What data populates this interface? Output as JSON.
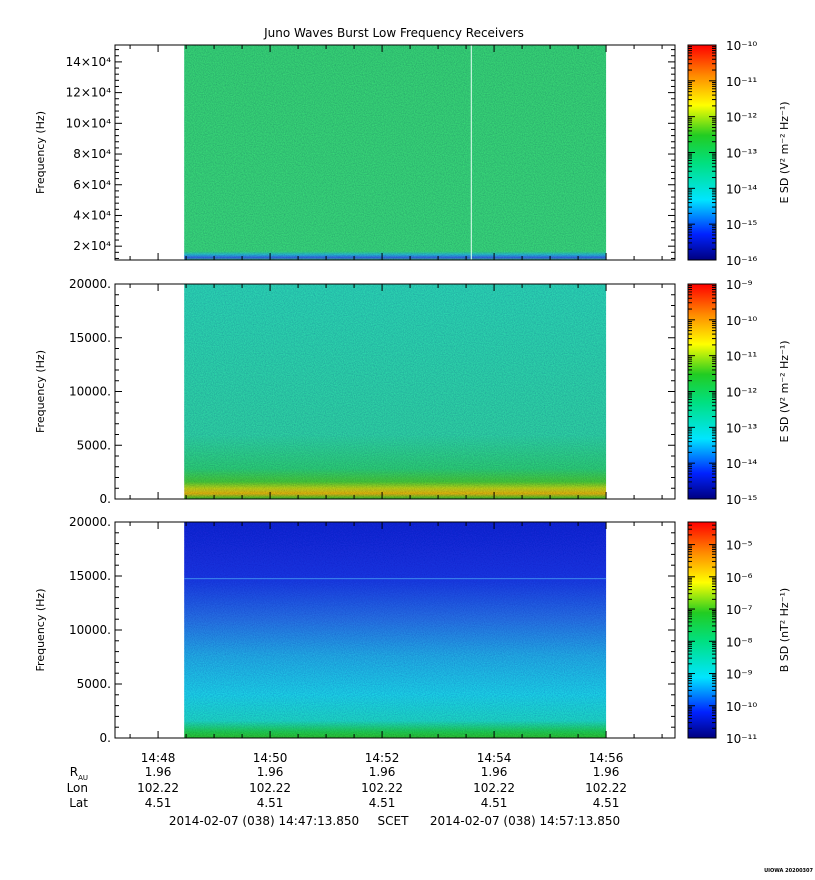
{
  "figure": {
    "title": "Juno Waves Burst Low Frequency Receivers",
    "stamp": "UIOWA 20200307"
  },
  "chart_data": [
    {
      "type": "heatmap",
      "panel": "top",
      "ylabel": "Frequency (Hz)",
      "yticks": [
        "2×10⁴",
        "4×10⁴",
        "6×10⁴",
        "8×10⁴",
        "10×10⁴",
        "12×10⁴",
        "14×10⁴"
      ],
      "ytick_values": [
        20000,
        40000,
        60000,
        80000,
        100000,
        120000,
        140000
      ],
      "ylim": [
        11000,
        151000
      ],
      "colorbar_label": "E SD (V² m⁻² Hz⁻¹)",
      "colorbar_ticks": [
        "10⁻¹⁰",
        "10⁻¹¹",
        "10⁻¹²",
        "10⁻¹³",
        "10⁻¹⁴",
        "10⁻¹⁵",
        "10⁻¹⁶"
      ],
      "colorbar_range": [
        -16,
        -10
      ],
      "data_color": "#3be07a"
    },
    {
      "type": "heatmap",
      "panel": "middle",
      "ylabel": "Frequency (Hz)",
      "yticks": [
        "0.",
        "5000.",
        "10000.",
        "15000.",
        "20000."
      ],
      "ytick_values": [
        0,
        5000,
        10000,
        15000,
        20000
      ],
      "ylim": [
        0,
        20000
      ],
      "colorbar_label": "E SD (V² m⁻² Hz⁻¹)",
      "colorbar_ticks": [
        "10⁻⁹",
        "10⁻¹⁰",
        "10⁻¹¹",
        "10⁻¹²",
        "10⁻¹³",
        "10⁻¹⁴",
        "10⁻¹⁵"
      ],
      "colorbar_range": [
        -15,
        -9
      ],
      "data_color": "#2fe3b0"
    },
    {
      "type": "heatmap",
      "panel": "bottom",
      "ylabel": "Frequency (Hz)",
      "yticks": [
        "0.",
        "5000.",
        "10000.",
        "15000.",
        "20000."
      ],
      "ytick_values": [
        0,
        5000,
        10000,
        15000,
        20000
      ],
      "ylim": [
        0,
        20000
      ],
      "colorbar_label": "B SD (nT² Hz⁻¹)",
      "colorbar_ticks": [
        "10⁻⁵",
        "10⁻⁶",
        "10⁻⁷",
        "10⁻⁸",
        "10⁻⁹",
        "10⁻¹⁰",
        "10⁻¹¹"
      ],
      "colorbar_range": [
        -11,
        -4.3
      ],
      "data_color": "#1a2ee0"
    }
  ],
  "xaxis": {
    "tick_labels": [
      "14:48",
      "14:50",
      "14:52",
      "14:54",
      "14:56"
    ],
    "xlim": [
      "14:47:13.850",
      "14:57:13.850"
    ],
    "data_range": [
      "14:48:28",
      "14:56:00"
    ]
  },
  "ephemeris": {
    "rows": [
      {
        "label": "R",
        "sub": "AU",
        "values": [
          "1.96",
          "1.96",
          "1.96",
          "1.96",
          "1.96"
        ]
      },
      {
        "label": "Lon",
        "values": [
          "102.22",
          "102.22",
          "102.22",
          "102.22",
          "102.22"
        ]
      },
      {
        "label": "Lat",
        "values": [
          "4.51",
          "4.51",
          "4.51",
          "4.51",
          "4.51"
        ]
      }
    ]
  },
  "time_range": {
    "start": "2014-02-07 (038) 14:47:13.850",
    "frame": "SCET",
    "end": "2014-02-07 (038) 14:57:13.850"
  }
}
